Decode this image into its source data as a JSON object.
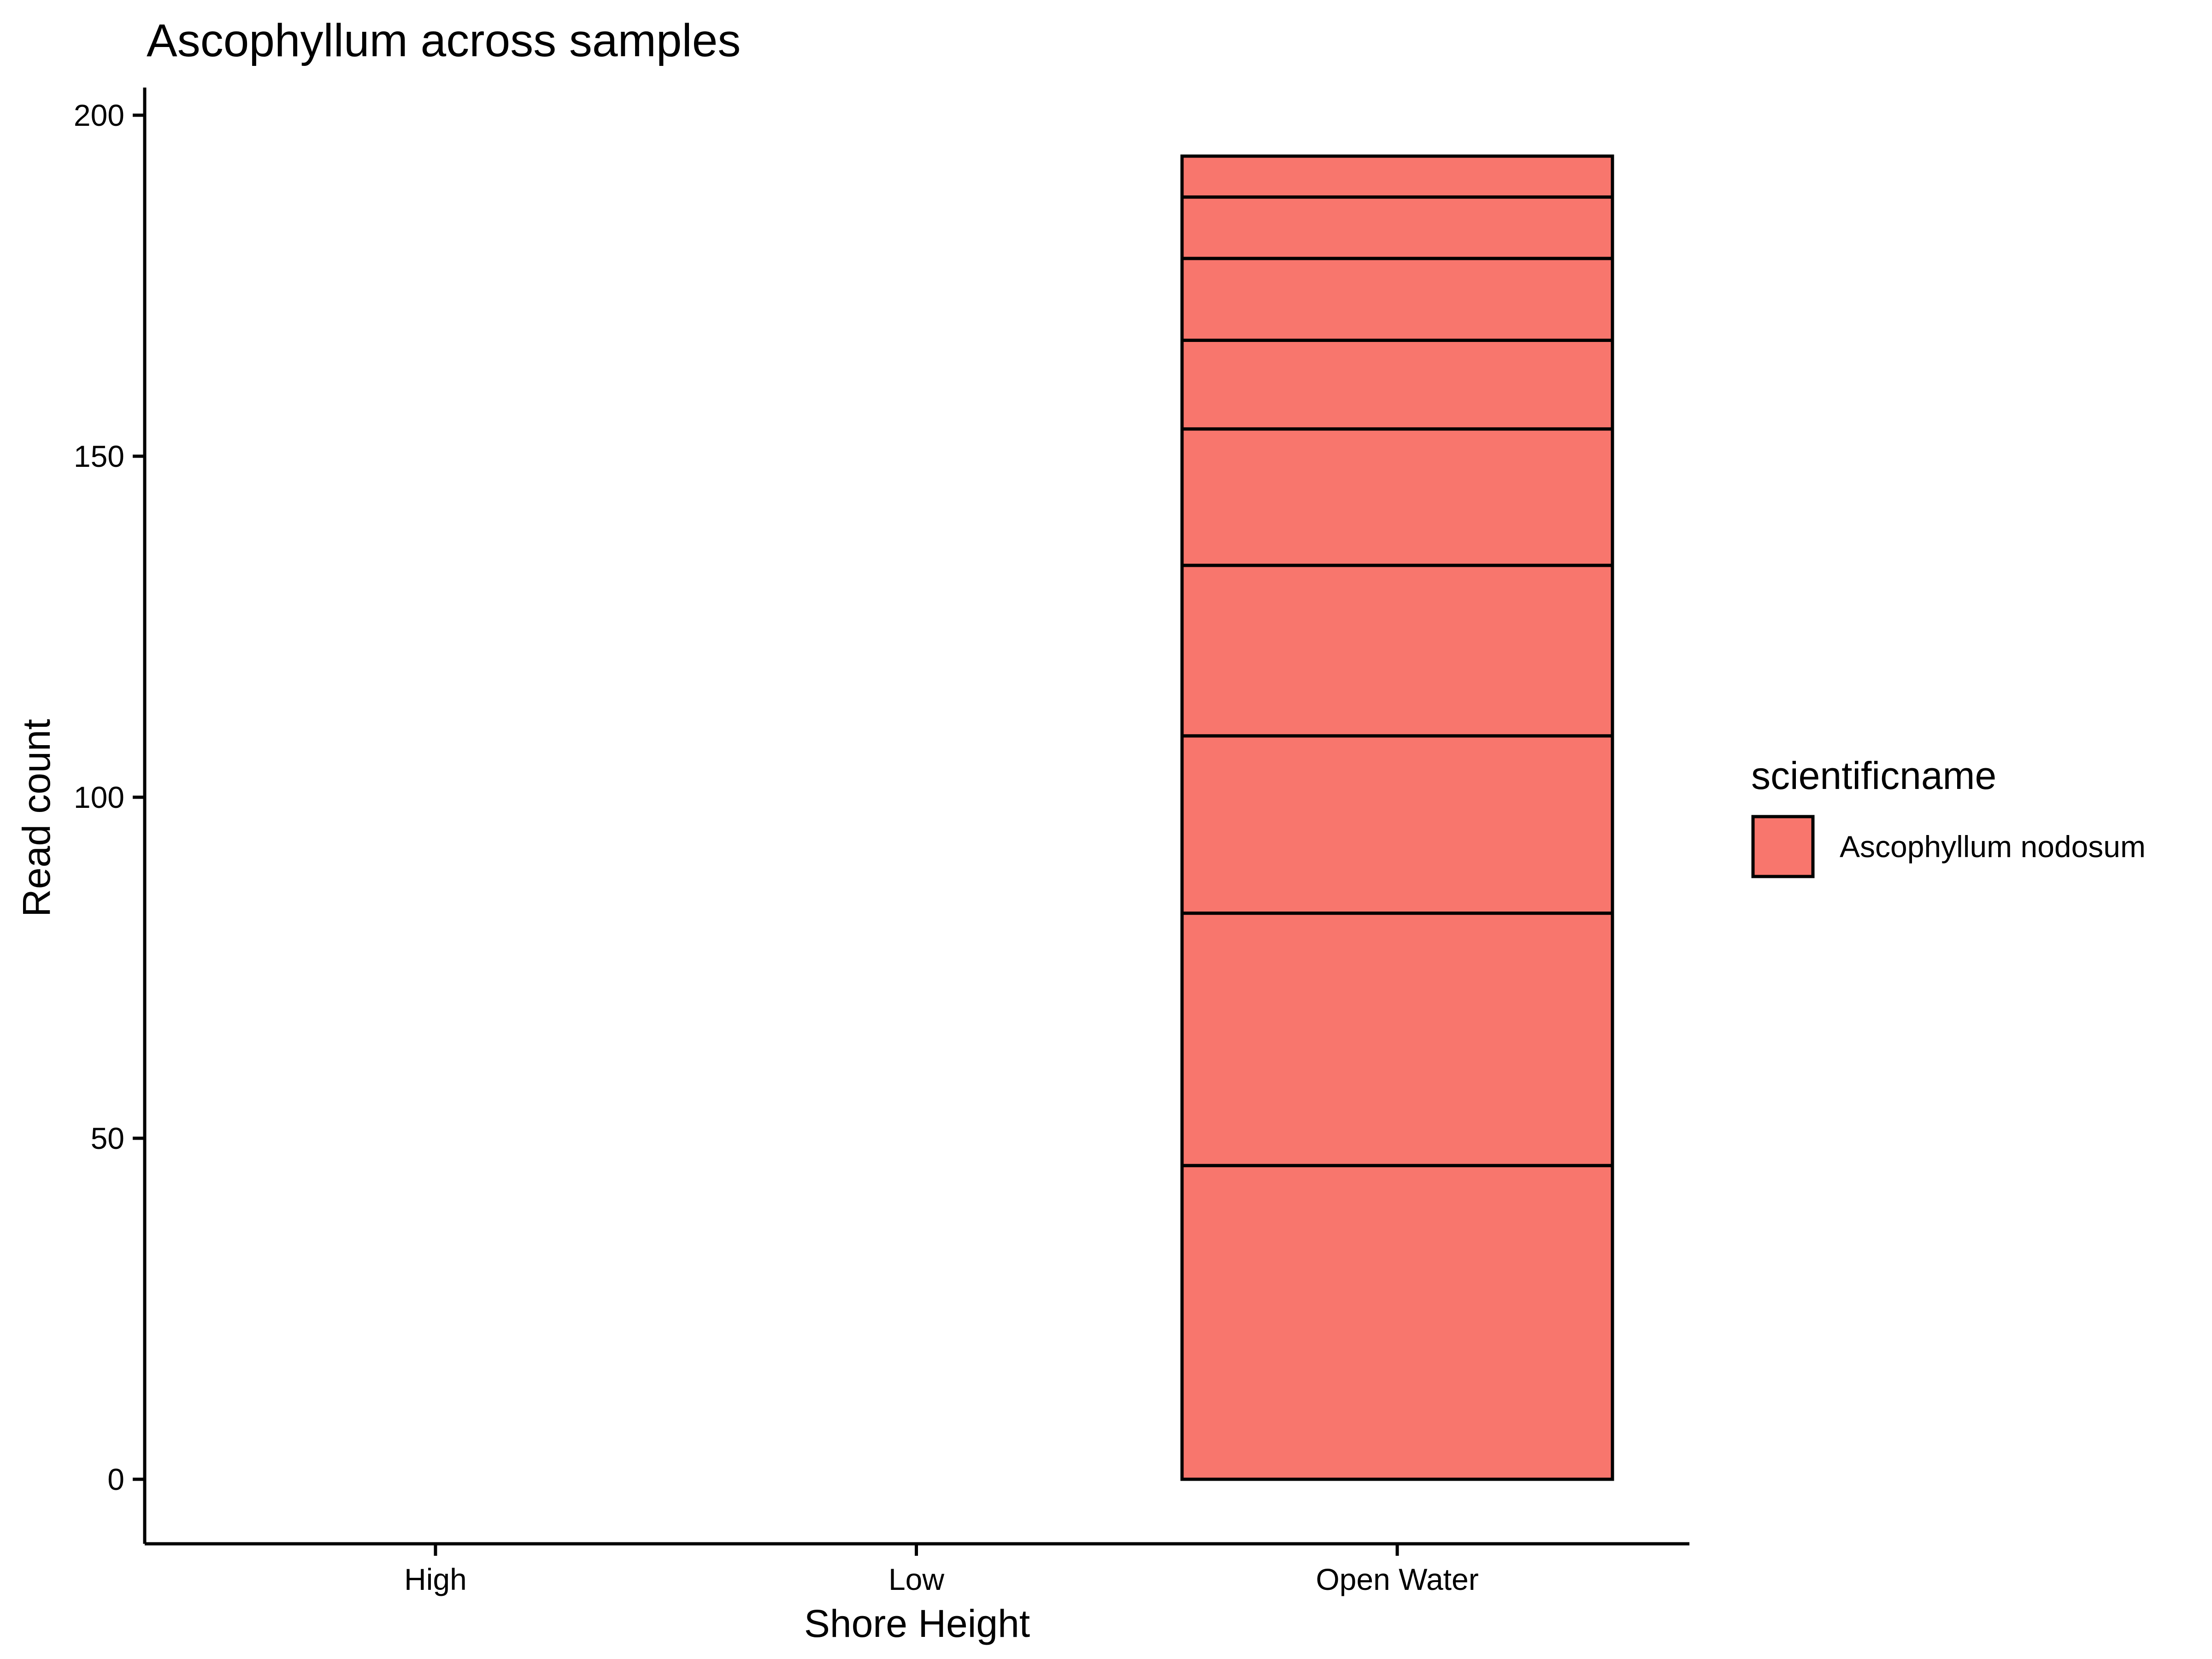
{
  "chart_data": {
    "type": "bar",
    "title": "Ascophyllum across samples",
    "xlabel": "Shore Height",
    "ylabel": "Read count",
    "categories": [
      "High",
      "Low",
      "Open Water"
    ],
    "ylim": [
      -9.5,
      204
    ],
    "yticks": [
      0,
      50,
      100,
      150,
      200
    ],
    "grid": false,
    "legend": {
      "title": "scientificname",
      "position": "right",
      "entries": [
        {
          "label": "Ascophyllum nodosum",
          "color": "#F8766D"
        }
      ]
    },
    "stacked": true,
    "segments": {
      "High": [
        0
      ],
      "Low": [
        0
      ],
      "Open Water": [
        46,
        37,
        26,
        25,
        20,
        13,
        12,
        9,
        6
      ]
    },
    "totals": [
      0,
      0,
      194
    ],
    "bar_color": "#F8766D",
    "outline_color": "#000000"
  }
}
